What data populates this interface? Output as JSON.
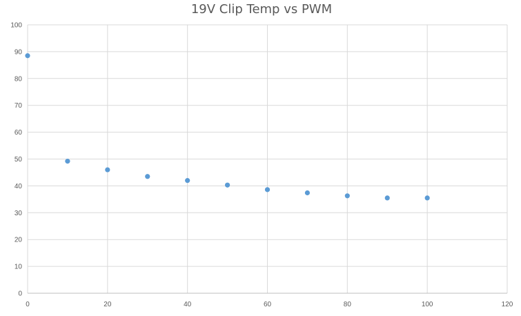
{
  "chart_data": {
    "type": "scatter",
    "title": "19V Clip Temp vs PWM",
    "xlabel": "",
    "ylabel": "",
    "xlim": [
      0,
      120
    ],
    "ylim": [
      0,
      100
    ],
    "x_ticks": [
      0,
      20,
      40,
      60,
      80,
      100,
      120
    ],
    "y_ticks": [
      0,
      10,
      20,
      30,
      40,
      50,
      60,
      70,
      80,
      90,
      100
    ],
    "grid": true,
    "legend": "none",
    "marker_color": "#5b9bd5",
    "series": [
      {
        "points": [
          {
            "x": 0,
            "y": 88.5
          },
          {
            "x": 10,
            "y": 49.2
          },
          {
            "x": 20,
            "y": 46.0
          },
          {
            "x": 30,
            "y": 43.5
          },
          {
            "x": 40,
            "y": 42.0
          },
          {
            "x": 50,
            "y": 40.3
          },
          {
            "x": 60,
            "y": 38.6
          },
          {
            "x": 70,
            "y": 37.4
          },
          {
            "x": 80,
            "y": 36.3
          },
          {
            "x": 90,
            "y": 35.5
          },
          {
            "x": 100,
            "y": 35.5
          }
        ]
      }
    ]
  }
}
